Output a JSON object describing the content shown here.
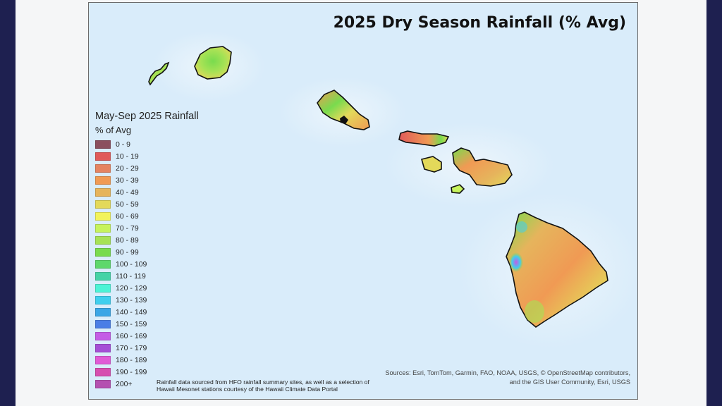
{
  "map": {
    "title": "2025 Dry Season Rainfall (% Avg)",
    "legend": {
      "title": "May-Sep 2025 Rainfall",
      "subtitle": "% of Avg",
      "items": [
        {
          "label": "0 - 9",
          "color": "#8b4f5e"
        },
        {
          "label": "10 - 19",
          "color": "#e05a5a"
        },
        {
          "label": "20 - 29",
          "color": "#e58462"
        },
        {
          "label": "30 - 39",
          "color": "#f09a54"
        },
        {
          "label": "40 - 49",
          "color": "#e6b45c"
        },
        {
          "label": "50 - 59",
          "color": "#e3d95a"
        },
        {
          "label": "60 - 69",
          "color": "#f2f35a"
        },
        {
          "label": "70 - 79",
          "color": "#c6f35c"
        },
        {
          "label": "80 - 89",
          "color": "#a6e255"
        },
        {
          "label": "90 - 99",
          "color": "#79db4e"
        },
        {
          "label": "100 - 109",
          "color": "#5ed86b"
        },
        {
          "label": "110 - 119",
          "color": "#43d3a6"
        },
        {
          "label": "120 - 129",
          "color": "#4cf3d6"
        },
        {
          "label": "130 - 139",
          "color": "#3fcfee"
        },
        {
          "label": "140 - 149",
          "color": "#3aa6e6"
        },
        {
          "label": "150 - 159",
          "color": "#4a7ee6"
        },
        {
          "label": "160 - 169",
          "color": "#c45ce6"
        },
        {
          "label": "170 - 179",
          "color": "#a54fd6"
        },
        {
          "label": "180 - 189",
          "color": "#e05ad6"
        },
        {
          "label": "190 - 199",
          "color": "#d64fb0"
        },
        {
          "label": "200+",
          "color": "#b450b0"
        }
      ]
    },
    "note": "Rainfall data sourced from HFO rainfall summary sites, as well as a selection of Hawaii Mesonet stations courtesy of the Hawaii Climate Data Portal",
    "sources_line1": "Sources: Esri, TomTom, Garmin, FAO, NOAA, USGS, © OpenStreetMap contributors,",
    "sources_line2": "and the GIS User Community, Esri, USGS"
  }
}
